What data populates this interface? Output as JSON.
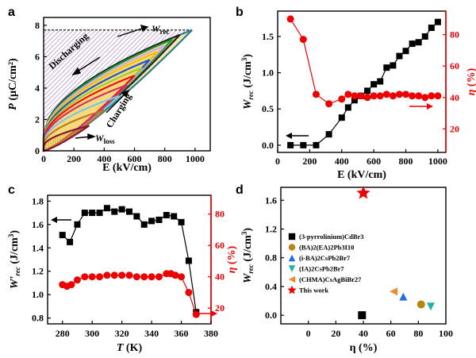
{
  "chart_data": [
    {
      "panel": "a",
      "type": "line",
      "xlabel": "E (kV/cm)",
      "ylabel": "P (μC/cm²)",
      "xlim": [
        0,
        1100
      ],
      "ylim": [
        0,
        8.5
      ],
      "xticks": [
        "0",
        "200",
        "400",
        "600",
        "800",
        "1000"
      ],
      "yticks": [
        "0",
        "2",
        "4",
        "6",
        "8"
      ],
      "annotations": [
        "Discharging",
        "Charging",
        "W_rec",
        "W_loss"
      ],
      "loops": [
        {
          "emax": 300,
          "pmax": 1.6,
          "color": "#8a1530"
        },
        {
          "emax": 400,
          "pmax": 2.6,
          "color": "#c07828"
        },
        {
          "emax": 500,
          "pmax": 3.5,
          "color": "#7fc4e8"
        },
        {
          "emax": 550,
          "pmax": 4.2,
          "color": "#d43070"
        },
        {
          "emax": 600,
          "pmax": 4.8,
          "color": "#e11"
        },
        {
          "emax": 650,
          "pmax": 5.3,
          "color": "#9acd32"
        },
        {
          "emax": 700,
          "pmax": 5.8,
          "color": "#2255cc"
        },
        {
          "emax": 750,
          "pmax": 6.3,
          "color": "#f2c200"
        },
        {
          "emax": 800,
          "pmax": 6.7,
          "color": "#d8a6f0"
        },
        {
          "emax": 850,
          "pmax": 7.1,
          "color": "#1a9a3a"
        },
        {
          "emax": 900,
          "pmax": 7.4,
          "color": "#222"
        },
        {
          "emax": 980,
          "pmax": 7.7,
          "color": "#2a7d8a"
        }
      ]
    },
    {
      "panel": "b",
      "type": "scatter",
      "xlabel": "E (kV/cm)",
      "ylabel": "W_rec (J/cm³)",
      "ylabel_right": "η (%)",
      "xlim": [
        0,
        1050
      ],
      "ylim": [
        -0.1,
        1.85
      ],
      "ylim_right": [
        5,
        95
      ],
      "xticks": [
        "0",
        "200",
        "400",
        "600",
        "800",
        "1000"
      ],
      "yticks": [
        "0.0",
        "0.5",
        "1.0",
        "1.5"
      ],
      "yticks_right": [
        "20",
        "40",
        "60",
        "80"
      ],
      "series": [
        {
          "axis": "left",
          "marker": "square",
          "color": "#000",
          "x": [
            80,
            160,
            240,
            320,
            400,
            440,
            480,
            520,
            560,
            600,
            640,
            680,
            720,
            760,
            800,
            840,
            880,
            920,
            960,
            1000
          ],
          "y": [
            0.0,
            0.0,
            0.0,
            0.15,
            0.38,
            0.52,
            0.62,
            0.68,
            0.75,
            0.84,
            0.88,
            1.07,
            1.1,
            1.23,
            1.3,
            1.4,
            1.42,
            1.5,
            1.62,
            1.7
          ]
        },
        {
          "axis": "right",
          "marker": "circle",
          "color": "#e00",
          "x": [
            80,
            160,
            240,
            320,
            400,
            440,
            480,
            520,
            560,
            600,
            640,
            680,
            720,
            760,
            800,
            840,
            880,
            920,
            960,
            1000
          ],
          "y": [
            90,
            77,
            42,
            36,
            39,
            42,
            41,
            41,
            40,
            41,
            41,
            42,
            41,
            42,
            42,
            41,
            41,
            40,
            41,
            41
          ]
        }
      ]
    },
    {
      "panel": "c",
      "type": "line",
      "xlabel": "T (K)",
      "ylabel": "W'_rec (J/cm³)",
      "ylabel_right": "η (%)",
      "xlim": [
        270,
        380
      ],
      "ylim": [
        0.75,
        1.85
      ],
      "ylim_right": [
        10,
        92
      ],
      "xticks": [
        "280",
        "300",
        "320",
        "340",
        "360",
        "380"
      ],
      "yticks": [
        "0.8",
        "1.0",
        "1.2",
        "1.4",
        "1.6",
        "1.8"
      ],
      "yticks_right": [
        "20",
        "40",
        "60",
        "80"
      ],
      "series": [
        {
          "axis": "left",
          "marker": "square",
          "color": "#000",
          "x": [
            280,
            285,
            290,
            295,
            300,
            305,
            310,
            315,
            320,
            325,
            330,
            335,
            340,
            345,
            350,
            355,
            360,
            365,
            370
          ],
          "y": [
            1.51,
            1.45,
            1.6,
            1.7,
            1.7,
            1.7,
            1.74,
            1.71,
            1.73,
            1.71,
            1.67,
            1.6,
            1.63,
            1.64,
            1.68,
            1.67,
            1.62,
            1.29,
            0.85
          ]
        },
        {
          "axis": "right",
          "marker": "circle",
          "color": "#e00",
          "x": [
            280,
            283,
            286,
            290,
            295,
            300,
            305,
            310,
            315,
            320,
            325,
            330,
            335,
            340,
            345,
            350,
            353,
            356,
            360,
            365,
            370
          ],
          "y": [
            35,
            34,
            35,
            38,
            40,
            40,
            40,
            41,
            41,
            41,
            41,
            40,
            40,
            40,
            40,
            42,
            42,
            41,
            40,
            30,
            16
          ]
        }
      ]
    },
    {
      "panel": "d",
      "type": "scatter",
      "xlabel": "η (%)",
      "ylabel": "W_rec (J/cm³)",
      "xlim": [
        -20,
        100
      ],
      "ylim": [
        -0.12,
        1.78
      ],
      "xticks": [
        "0",
        "20",
        "40",
        "60",
        "80",
        "100"
      ],
      "yticks": [
        "0.0",
        "0.4",
        "0.8",
        "1.2",
        "1.6"
      ],
      "series": [
        {
          "name": "(3-pyrrolinium)CdBr3",
          "marker": "square",
          "color": "#000",
          "x": [
            39
          ],
          "y": [
            0.0
          ]
        },
        {
          "name": "(BA)2(EA)2Pb3I10",
          "marker": "circle",
          "color": "#b8860b",
          "x": [
            82
          ],
          "y": [
            0.15
          ]
        },
        {
          "name": "(i-BA)2CsPb2Br7",
          "marker": "triangle-up",
          "color": "#1e6fe0",
          "x": [
            69
          ],
          "y": [
            0.26
          ]
        },
        {
          "name": "(IA)2CsPb2Br7",
          "marker": "triangle-down",
          "color": "#20b2aa",
          "x": [
            89
          ],
          "y": [
            0.12
          ]
        },
        {
          "name": "(CHMA)CsAgBiBr27",
          "marker": "triangle-left",
          "color": "#f08a30",
          "x": [
            62
          ],
          "y": [
            0.33
          ]
        },
        {
          "name": "This work",
          "marker": "star",
          "color": "#e00",
          "x": [
            40
          ],
          "y": [
            1.7
          ]
        }
      ]
    }
  ],
  "panels": {
    "a": {
      "letter": "a",
      "xlabel": "E (kV/cm)",
      "ylabel_P": "P",
      "ylabel_unit": "(μC/cm²)",
      "discharging": "Discharging",
      "charging": "Charging",
      "wrec": "W",
      "wrec_sub": "rec",
      "wloss": "W",
      "wloss_sub": "loss"
    },
    "b": {
      "letter": "b",
      "xlabel": "E (kV/cm)"
    },
    "c": {
      "letter": "c",
      "xlabel_T": "T",
      "xlabel_unit": "(K)"
    },
    "d": {
      "letter": "d",
      "xlabel": "η (%)"
    }
  },
  "colors": {
    "black_series": "#000000",
    "red_series": "#e00000"
  }
}
